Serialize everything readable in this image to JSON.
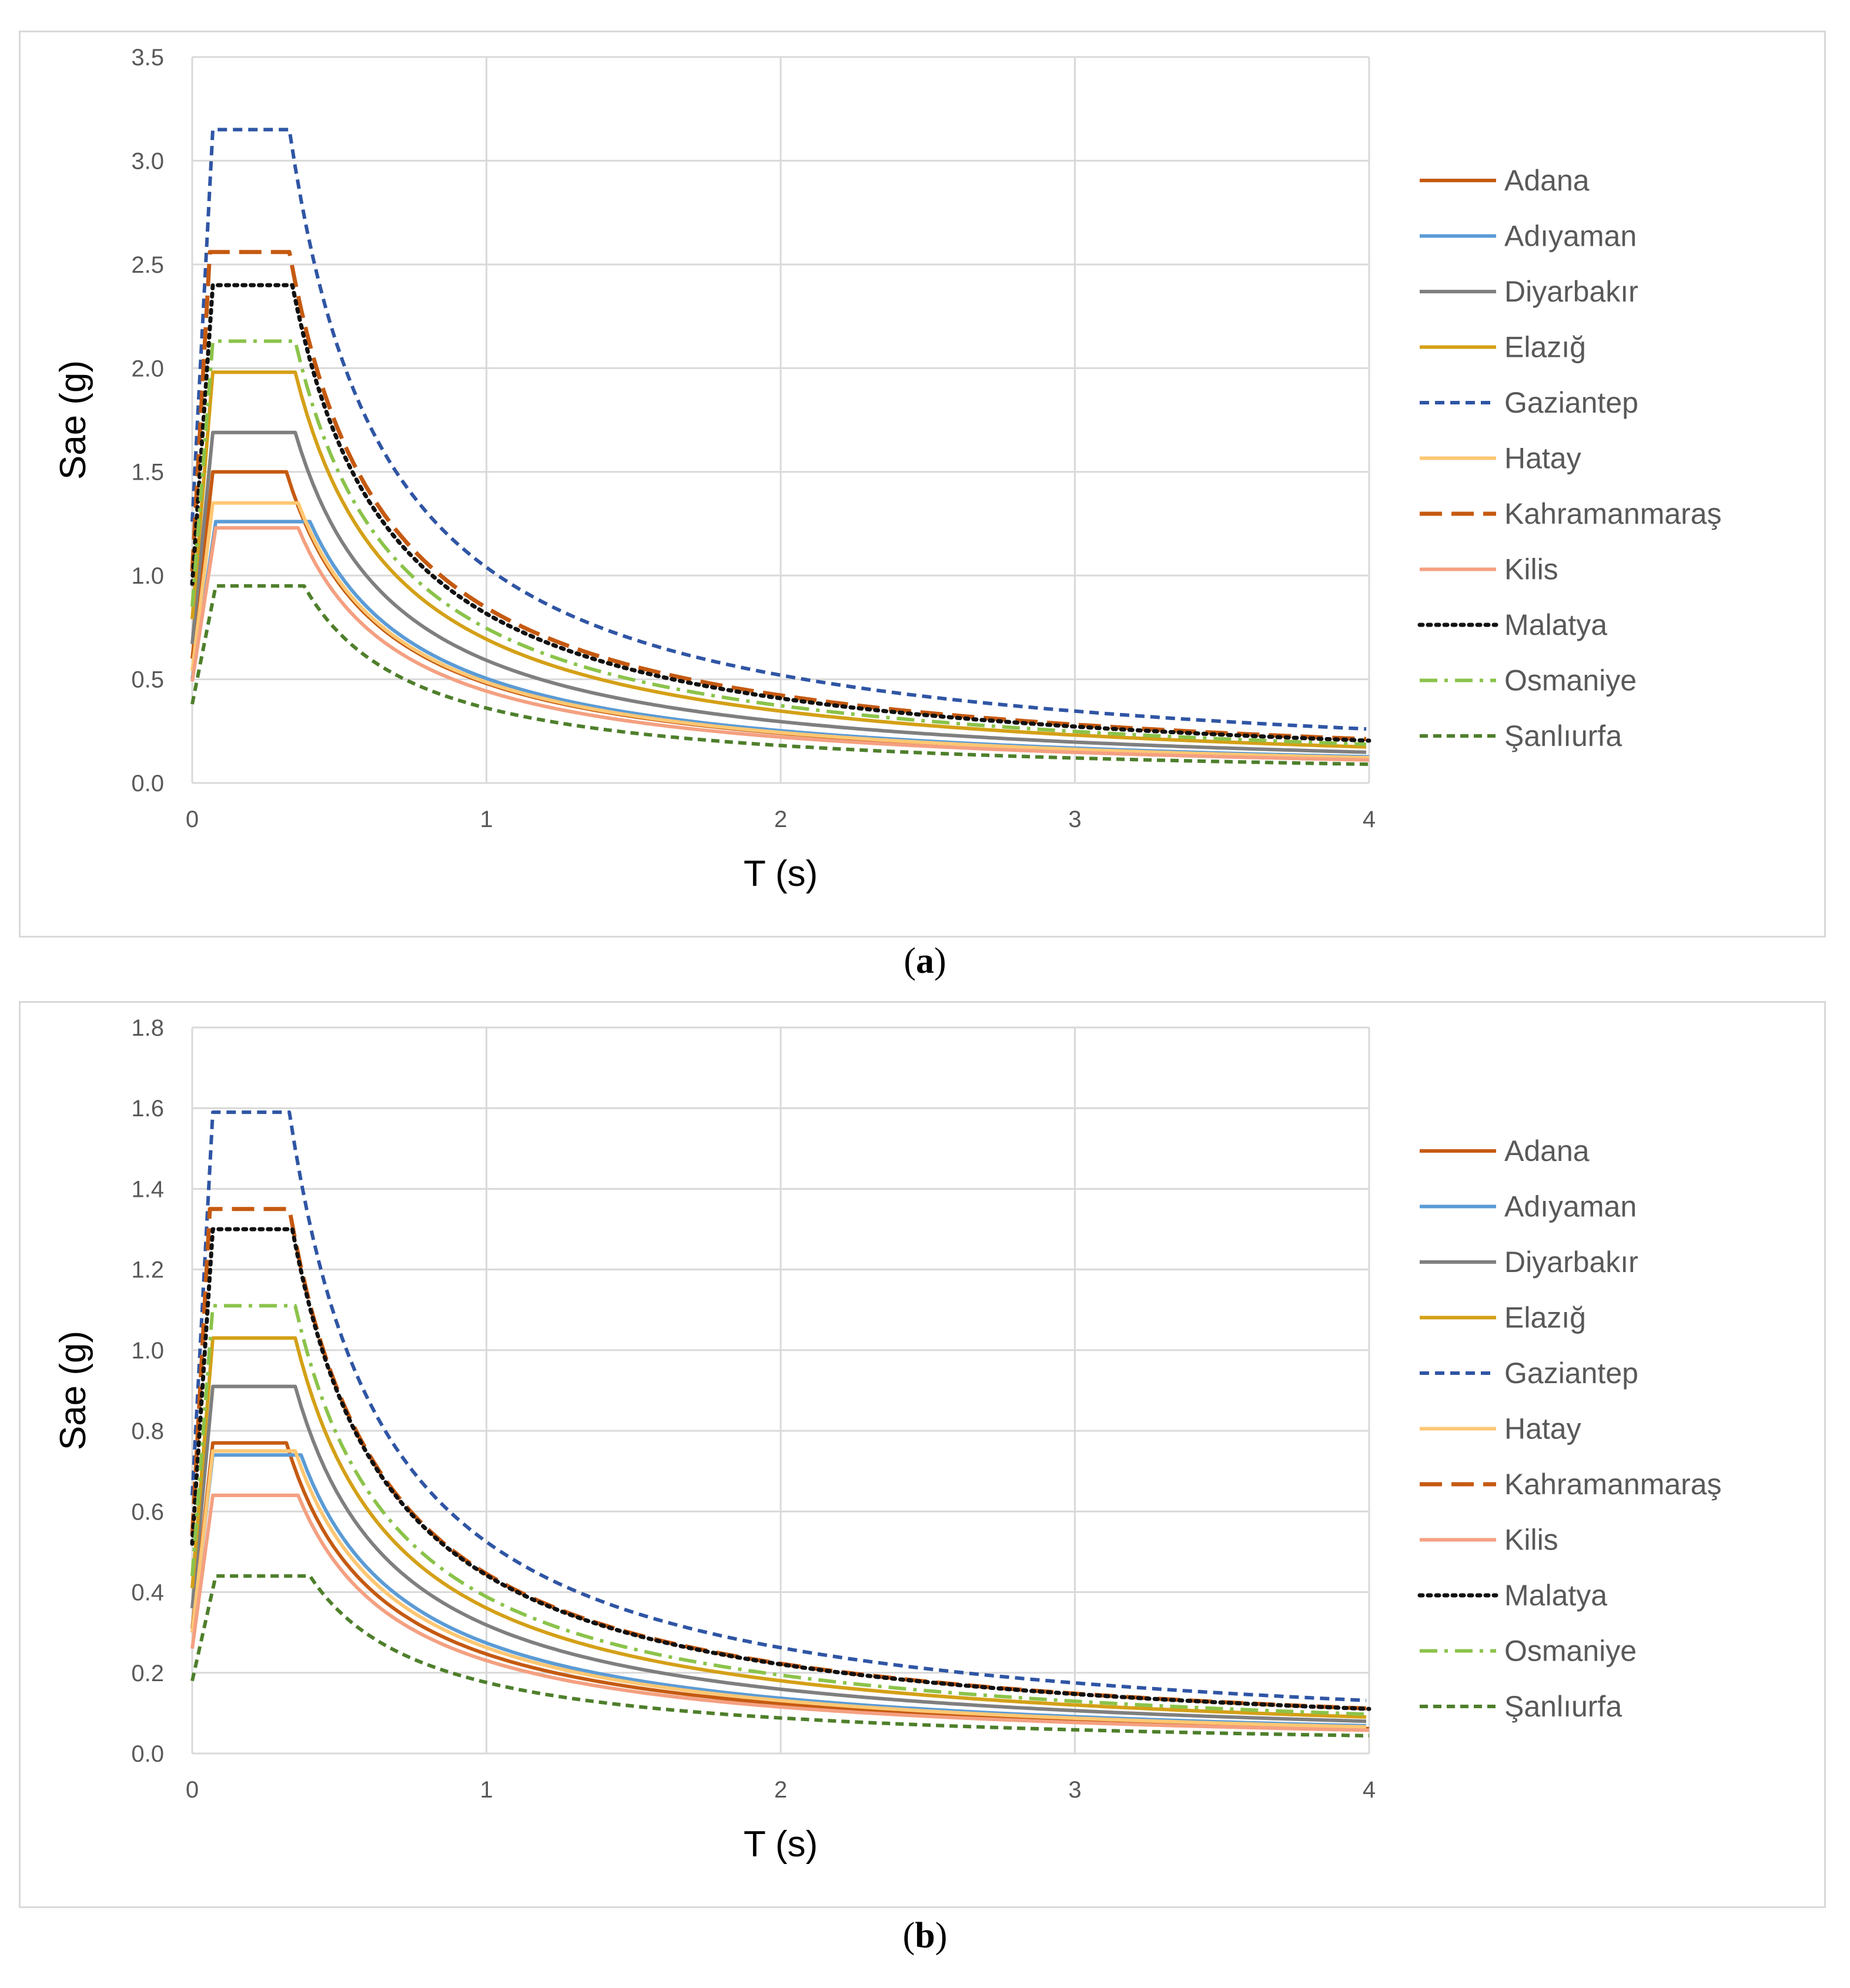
{
  "series_styles": [
    {
      "name": "Adana",
      "color": "#C55A11",
      "dash": "",
      "width": 6
    },
    {
      "name": "Adıyaman",
      "color": "#5B9BD5",
      "dash": "",
      "width": 6
    },
    {
      "name": "Diyarbakır",
      "color": "#7F7F7F",
      "dash": "",
      "width": 6
    },
    {
      "name": "Elazığ",
      "color": "#D4A017",
      "dash": "",
      "width": 6
    },
    {
      "name": "Gaziantep",
      "color": "#2F55A4",
      "dash": "16 10",
      "width": 6
    },
    {
      "name": "Hatay",
      "color": "#FFC773",
      "dash": "",
      "width": 6
    },
    {
      "name": "Kahramanmaraş",
      "color": "#C55A11",
      "dash": "38 16",
      "width": 7
    },
    {
      "name": "Kilis",
      "color": "#F4A081",
      "dash": "",
      "width": 6
    },
    {
      "name": "Malatya",
      "color": "#111111",
      "dash": "5 9",
      "width": 7
    },
    {
      "name": "Osmaniye",
      "color": "#8BC34A",
      "dash": "30 12 6 12",
      "width": 6
    },
    {
      "name": "Şanlıurfa",
      "color": "#4E7F2B",
      "dash": "14 9",
      "width": 6
    }
  ],
  "chart_data": [
    {
      "type": "line",
      "caption": "a",
      "xlabel": "T (s)",
      "ylabel": "Sae (g)",
      "xlim": [
        0,
        4
      ],
      "ylim": [
        0,
        3.5
      ],
      "xticks": [
        "0",
        "1",
        "2",
        "3",
        "4"
      ],
      "yticks": [
        "0.0",
        "0.5",
        "1.0",
        "1.5",
        "2.0",
        "2.5",
        "3.0",
        "3.5"
      ],
      "grid": "vertical-and-horizontal",
      "legend": "right",
      "series": [
        {
          "name": "Adana",
          "start": 0.6,
          "plateau": 1.5,
          "Ta": 0.07,
          "Tb": 0.32
        },
        {
          "name": "Adıyaman",
          "start": 0.5,
          "plateau": 1.26,
          "Ta": 0.08,
          "Tb": 0.4
        },
        {
          "name": "Diyarbakır",
          "start": 0.67,
          "plateau": 1.69,
          "Ta": 0.07,
          "Tb": 0.35
        },
        {
          "name": "Elazığ",
          "start": 0.79,
          "plateau": 1.98,
          "Ta": 0.07,
          "Tb": 0.35
        },
        {
          "name": "Gaziantep",
          "start": 1.26,
          "plateau": 3.15,
          "Ta": 0.07,
          "Tb": 0.33
        },
        {
          "name": "Hatay",
          "start": 0.54,
          "plateau": 1.35,
          "Ta": 0.07,
          "Tb": 0.36
        },
        {
          "name": "Kahramanmaraş",
          "start": 1.02,
          "plateau": 2.56,
          "Ta": 0.06,
          "Tb": 0.33
        },
        {
          "name": "Kilis",
          "start": 0.49,
          "plateau": 1.23,
          "Ta": 0.08,
          "Tb": 0.36
        },
        {
          "name": "Malatya",
          "start": 0.96,
          "plateau": 2.4,
          "Ta": 0.07,
          "Tb": 0.34
        },
        {
          "name": "Osmaniye",
          "start": 0.85,
          "plateau": 2.13,
          "Ta": 0.07,
          "Tb": 0.35
        },
        {
          "name": "Şanlıurfa",
          "start": 0.38,
          "plateau": 0.95,
          "Ta": 0.08,
          "Tb": 0.38
        }
      ]
    },
    {
      "type": "line",
      "caption": "b",
      "xlabel": "T (s)",
      "ylabel": "Sae (g)",
      "xlim": [
        0,
        4
      ],
      "ylim": [
        0,
        1.8
      ],
      "xticks": [
        "0",
        "1",
        "2",
        "3",
        "4"
      ],
      "yticks": [
        "0.0",
        "0.2",
        "0.4",
        "0.6",
        "0.8",
        "1.0",
        "1.2",
        "1.4",
        "1.6",
        "1.8"
      ],
      "grid": "vertical-and-horizontal",
      "legend": "right",
      "series": [
        {
          "name": "Adana",
          "start": 0.31,
          "plateau": 0.77,
          "Ta": 0.07,
          "Tb": 0.32
        },
        {
          "name": "Adıyaman",
          "start": 0.3,
          "plateau": 0.74,
          "Ta": 0.07,
          "Tb": 0.37
        },
        {
          "name": "Diyarbakır",
          "start": 0.36,
          "plateau": 0.91,
          "Ta": 0.07,
          "Tb": 0.35
        },
        {
          "name": "Elazığ",
          "start": 0.41,
          "plateau": 1.03,
          "Ta": 0.07,
          "Tb": 0.35
        },
        {
          "name": "Gaziantep",
          "start": 0.64,
          "plateau": 1.59,
          "Ta": 0.07,
          "Tb": 0.33
        },
        {
          "name": "Hatay",
          "start": 0.3,
          "plateau": 0.75,
          "Ta": 0.07,
          "Tb": 0.35
        },
        {
          "name": "Kahramanmaraş",
          "start": 0.54,
          "plateau": 1.35,
          "Ta": 0.06,
          "Tb": 0.33
        },
        {
          "name": "Kilis",
          "start": 0.26,
          "plateau": 0.64,
          "Ta": 0.07,
          "Tb": 0.36
        },
        {
          "name": "Malatya",
          "start": 0.52,
          "plateau": 1.3,
          "Ta": 0.07,
          "Tb": 0.34
        },
        {
          "name": "Osmaniye",
          "start": 0.44,
          "plateau": 1.11,
          "Ta": 0.07,
          "Tb": 0.35
        },
        {
          "name": "Şanlıurfa",
          "start": 0.18,
          "plateau": 0.44,
          "Ta": 0.08,
          "Tb": 0.4
        }
      ]
    }
  ]
}
